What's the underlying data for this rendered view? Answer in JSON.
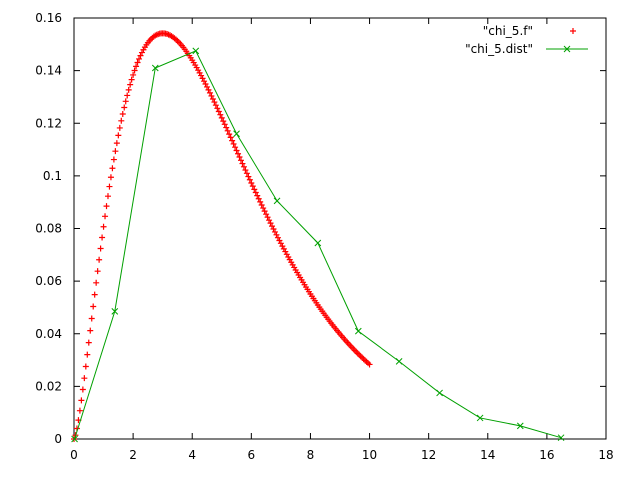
{
  "chart_data": {
    "type": "scatter",
    "title": "",
    "xlabel": "",
    "ylabel": "",
    "xlim": [
      0,
      18
    ],
    "ylim": [
      0,
      0.16
    ],
    "xticks": [
      0,
      2,
      4,
      6,
      8,
      10,
      12,
      14,
      16,
      18
    ],
    "xtick_labels": [
      "0",
      "2",
      "4",
      "6",
      "8",
      "10",
      "12",
      "14",
      "16",
      "18"
    ],
    "yticks": [
      0,
      0.02,
      0.04,
      0.06,
      0.08,
      0.1,
      0.12,
      0.14,
      0.16
    ],
    "ytick_labels": [
      "0",
      "0.02",
      "0.04",
      "0.06",
      "0.08",
      "0.1",
      "0.12",
      "0.14",
      "0.16"
    ],
    "grid": false,
    "legend_position": "top-right",
    "series": [
      {
        "name": "\"chi_5.f\"",
        "style": "points",
        "marker": "plus",
        "color": "#ff0000",
        "function": "chi-square pdf, 5 degrees of freedom",
        "x_range": [
          0,
          10
        ],
        "x_step": 0.05
      },
      {
        "name": "\"chi_5.dist\"",
        "style": "linespoints",
        "marker": "cross",
        "color": "#00a000",
        "x": [
          0.02,
          1.38,
          2.75,
          4.12,
          5.5,
          6.87,
          8.25,
          9.62,
          11.0,
          12.37,
          13.74,
          15.1,
          16.48
        ],
        "y": [
          0.0,
          0.0485,
          0.141,
          0.1475,
          0.116,
          0.0905,
          0.0745,
          0.041,
          0.0295,
          0.0175,
          0.008,
          0.005,
          0.0005
        ]
      }
    ]
  }
}
